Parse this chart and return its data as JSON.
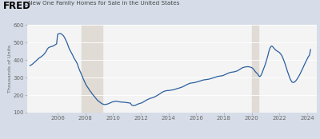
{
  "title": "New One Family Homes for Sale in the United States",
  "ylabel": "Thousands of Units",
  "line_color": "#2a5f9e",
  "bg_color": "#d6dde8",
  "plot_bg_color": "#f4f4f4",
  "recession1_start": 2007.75,
  "recession1_end": 2009.25,
  "recession2_start": 2020.0,
  "recession2_end": 2020.5,
  "recession_color": "#e0dbd5",
  "ylim": [
    100,
    600
  ],
  "yticks": [
    100,
    200,
    300,
    400,
    500,
    600
  ],
  "xlim": [
    2003.8,
    2024.7
  ],
  "xticks": [
    2006,
    2008,
    2010,
    2012,
    2014,
    2016,
    2018,
    2020,
    2022,
    2024
  ],
  "fred_text": "FRED",
  "data": {
    "years": [
      2004.0,
      2004.08,
      2004.17,
      2004.25,
      2004.33,
      2004.42,
      2004.5,
      2004.58,
      2004.67,
      2004.75,
      2004.83,
      2004.92,
      2005.0,
      2005.08,
      2005.17,
      2005.25,
      2005.33,
      2005.42,
      2005.5,
      2005.58,
      2005.67,
      2005.75,
      2005.83,
      2005.92,
      2006.0,
      2006.08,
      2006.17,
      2006.25,
      2006.33,
      2006.42,
      2006.5,
      2006.58,
      2006.67,
      2006.75,
      2006.83,
      2006.92,
      2007.0,
      2007.08,
      2007.17,
      2007.25,
      2007.33,
      2007.42,
      2007.5,
      2007.58,
      2007.67,
      2007.75,
      2007.83,
      2007.92,
      2008.0,
      2008.08,
      2008.17,
      2008.25,
      2008.33,
      2008.42,
      2008.5,
      2008.58,
      2008.67,
      2008.75,
      2008.83,
      2008.92,
      2009.0,
      2009.08,
      2009.17,
      2009.25,
      2009.33,
      2009.42,
      2009.5,
      2009.58,
      2009.67,
      2009.75,
      2009.83,
      2009.92,
      2010.0,
      2010.08,
      2010.17,
      2010.25,
      2010.33,
      2010.42,
      2010.5,
      2010.58,
      2010.67,
      2010.75,
      2010.83,
      2010.92,
      2011.0,
      2011.08,
      2011.17,
      2011.25,
      2011.33,
      2011.42,
      2011.5,
      2011.58,
      2011.67,
      2011.75,
      2011.83,
      2011.92,
      2012.0,
      2012.08,
      2012.17,
      2012.25,
      2012.33,
      2012.42,
      2012.5,
      2012.58,
      2012.67,
      2012.75,
      2012.83,
      2012.92,
      2013.0,
      2013.08,
      2013.17,
      2013.25,
      2013.33,
      2013.42,
      2013.5,
      2013.58,
      2013.67,
      2013.75,
      2013.83,
      2013.92,
      2014.0,
      2014.08,
      2014.17,
      2014.25,
      2014.33,
      2014.42,
      2014.5,
      2014.58,
      2014.67,
      2014.75,
      2014.83,
      2014.92,
      2015.0,
      2015.08,
      2015.17,
      2015.25,
      2015.33,
      2015.42,
      2015.5,
      2015.58,
      2015.67,
      2015.75,
      2015.83,
      2015.92,
      2016.0,
      2016.08,
      2016.17,
      2016.25,
      2016.33,
      2016.42,
      2016.5,
      2016.58,
      2016.67,
      2016.75,
      2016.83,
      2016.92,
      2017.0,
      2017.08,
      2017.17,
      2017.25,
      2017.33,
      2017.42,
      2017.5,
      2017.58,
      2017.67,
      2017.75,
      2017.83,
      2017.92,
      2018.0,
      2018.08,
      2018.17,
      2018.25,
      2018.33,
      2018.42,
      2018.5,
      2018.58,
      2018.67,
      2018.75,
      2018.83,
      2018.92,
      2019.0,
      2019.08,
      2019.17,
      2019.25,
      2019.33,
      2019.42,
      2019.5,
      2019.58,
      2019.67,
      2019.75,
      2019.83,
      2019.92,
      2020.0,
      2020.08,
      2020.17,
      2020.25,
      2020.33,
      2020.42,
      2020.5,
      2020.58,
      2020.67,
      2020.75,
      2020.83,
      2020.92,
      2021.0,
      2021.08,
      2021.17,
      2021.25,
      2021.33,
      2021.42,
      2021.5,
      2021.58,
      2021.67,
      2021.75,
      2021.83,
      2021.92,
      2022.0,
      2022.08,
      2022.17,
      2022.25,
      2022.33,
      2022.42,
      2022.5,
      2022.58,
      2022.67,
      2022.75,
      2022.83,
      2022.92,
      2023.0,
      2023.08,
      2023.17,
      2023.25,
      2023.33,
      2023.42,
      2023.5,
      2023.58,
      2023.67,
      2023.75,
      2023.83,
      2023.92,
      2024.0,
      2024.08,
      2024.17,
      2024.25
    ],
    "values": [
      368,
      372,
      376,
      382,
      388,
      394,
      400,
      406,
      412,
      416,
      420,
      426,
      432,
      440,
      450,
      462,
      470,
      474,
      476,
      478,
      480,
      484,
      488,
      492,
      548,
      550,
      552,
      550,
      545,
      538,
      528,
      515,
      500,
      482,
      465,
      452,
      440,
      428,
      412,
      402,
      392,
      378,
      358,
      342,
      326,
      312,
      296,
      280,
      266,
      254,
      244,
      234,
      224,
      216,
      206,
      198,
      190,
      182,
      174,
      167,
      162,
      157,
      152,
      149,
      147,
      146,
      147,
      149,
      151,
      154,
      157,
      160,
      162,
      163,
      165,
      165,
      163,
      162,
      161,
      160,
      160,
      159,
      159,
      158,
      157,
      156,
      155,
      154,
      143,
      141,
      140,
      141,
      144,
      147,
      150,
      152,
      154,
      156,
      160,
      164,
      168,
      172,
      175,
      178,
      181,
      183,
      185,
      187,
      190,
      193,
      197,
      201,
      205,
      210,
      214,
      218,
      221,
      223,
      225,
      226,
      226,
      227,
      228,
      229,
      230,
      232,
      234,
      236,
      238,
      240,
      242,
      244,
      247,
      250,
      253,
      257,
      260,
      263,
      266,
      268,
      269,
      270,
      271,
      272,
      274,
      276,
      278,
      280,
      282,
      284,
      286,
      287,
      288,
      289,
      290,
      291,
      293,
      295,
      297,
      299,
      301,
      303,
      305,
      307,
      308,
      309,
      310,
      311,
      314,
      317,
      320,
      323,
      326,
      328,
      330,
      331,
      332,
      333,
      335,
      337,
      340,
      344,
      348,
      352,
      356,
      358,
      360,
      361,
      362,
      362,
      361,
      359,
      357,
      352,
      344,
      335,
      328,
      322,
      312,
      305,
      312,
      326,
      344,
      362,
      380,
      402,
      426,
      452,
      470,
      480,
      478,
      470,
      462,
      456,
      452,
      448,
      443,
      436,
      426,
      412,
      396,
      376,
      356,
      336,
      316,
      298,
      284,
      274,
      272,
      274,
      280,
      288,
      298,
      310,
      322,
      336,
      350,
      364,
      378,
      392,
      405,
      418,
      428,
      460
    ]
  }
}
